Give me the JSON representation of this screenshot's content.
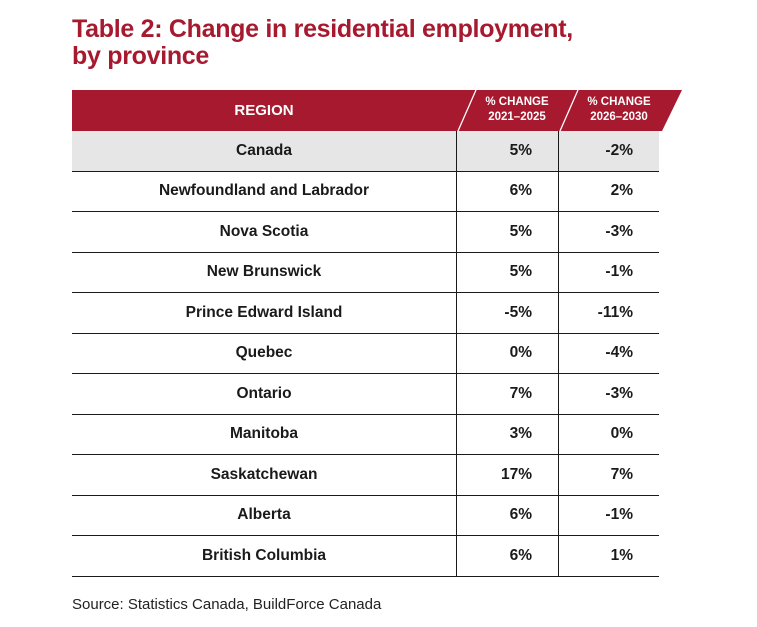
{
  "title": {
    "line1": "Table 2: Change in residential employment,",
    "line2": "by province"
  },
  "header": {
    "region": "REGION",
    "col1_line1": "% CHANGE",
    "col1_line2": "2021–2025",
    "col2_line1": "% CHANGE",
    "col2_line2": "2026–2030"
  },
  "colors": {
    "header_bg": "#a6192e",
    "highlight_row": "#e6e6e6",
    "title": "#a6192e"
  },
  "rows": [
    {
      "region": "Canada",
      "v1": "5%",
      "v2": "-2%"
    },
    {
      "region": "Newfoundland and Labrador",
      "v1": "6%",
      "v2": "2%"
    },
    {
      "region": "Nova Scotia",
      "v1": "5%",
      "v2": "-3%"
    },
    {
      "region": "New Brunswick",
      "v1": "5%",
      "v2": "-1%"
    },
    {
      "region": "Prince Edward Island",
      "v1": "-5%",
      "v2": "-11%"
    },
    {
      "region": "Quebec",
      "v1": "0%",
      "v2": "-4%"
    },
    {
      "region": "Ontario",
      "v1": "7%",
      "v2": "-3%"
    },
    {
      "region": "Manitoba",
      "v1": "3%",
      "v2": "0%"
    },
    {
      "region": "Saskatchewan",
      "v1": "17%",
      "v2": "7%"
    },
    {
      "region": "Alberta",
      "v1": "6%",
      "v2": "-1%"
    },
    {
      "region": "British Columbia",
      "v1": "6%",
      "v2": "1%"
    }
  ],
  "source": "Source: Statistics Canada, BuildForce Canada"
}
